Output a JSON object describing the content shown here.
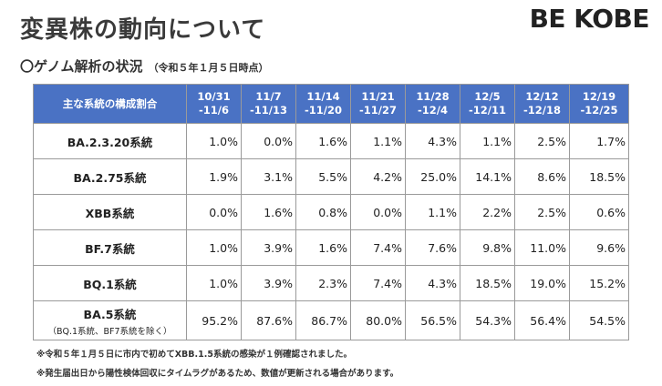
{
  "title": "変異株の動向について",
  "logo": "BE KOBE",
  "subtitle": "〇ゲノム解析の状況",
  "subtitle_note": "（令和５年１月５日時点）",
  "table": {
    "header_label": "主な系統の構成割合",
    "periods": [
      {
        "start": "10/31",
        "end": "-11/6"
      },
      {
        "start": "11/7",
        "end": "-11/13"
      },
      {
        "start": "11/14",
        "end": "-11/20"
      },
      {
        "start": "11/21",
        "end": "-11/27"
      },
      {
        "start": "11/28",
        "end": "-12/4"
      },
      {
        "start": "12/5",
        "end": "-12/11"
      },
      {
        "start": "12/12",
        "end": "-12/18"
      },
      {
        "start": "12/19",
        "end": "-12/25"
      }
    ],
    "rows": [
      {
        "label": "BA.2.3.20系統",
        "values": [
          "1.0%",
          "0.0%",
          "1.6%",
          "1.1%",
          "4.3%",
          "1.1%",
          "2.5%",
          "1.7%"
        ]
      },
      {
        "label": "BA.2.75系統",
        "values": [
          "1.9%",
          "3.1%",
          "5.5%",
          "4.2%",
          "25.0%",
          "14.1%",
          "8.6%",
          "18.5%"
        ]
      },
      {
        "label": "XBB系統",
        "values": [
          "0.0%",
          "1.6%",
          "0.8%",
          "0.0%",
          "1.1%",
          "2.2%",
          "2.5%",
          "0.6%"
        ]
      },
      {
        "label": "BF.7系統",
        "values": [
          "1.0%",
          "3.9%",
          "1.6%",
          "7.4%",
          "7.6%",
          "9.8%",
          "11.0%",
          "9.6%"
        ]
      },
      {
        "label": "BQ.1系統",
        "values": [
          "1.0%",
          "3.9%",
          "2.3%",
          "7.4%",
          "4.3%",
          "18.5%",
          "19.0%",
          "15.2%"
        ]
      },
      {
        "label": "BA.5系統",
        "sublabel": "（BQ.1系統、BF7系統を除く）",
        "values": [
          "95.2%",
          "87.6%",
          "86.7%",
          "80.0%",
          "56.5%",
          "54.3%",
          "56.4%",
          "54.5%"
        ]
      }
    ]
  },
  "footnotes": [
    "※令和５年１月５日に市内で初めてXBB.1.5系統の感染が１例確認されました。",
    "※発生届出日から陽性検体回収にタイムラグがあるため、数値が更新される場合があります。"
  ]
}
